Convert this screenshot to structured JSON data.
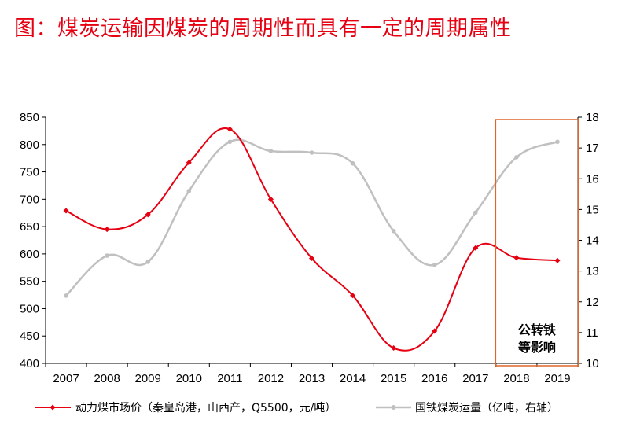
{
  "title": "图：煤炭运输因煤炭的周期性而具有一定的周期属性",
  "chart_data": {
    "type": "line",
    "x": [
      "2007",
      "2008",
      "2009",
      "2010",
      "2011",
      "2012",
      "2013",
      "2014",
      "2015",
      "2016",
      "2017",
      "2018",
      "2019"
    ],
    "y_left": {
      "range": [
        400,
        850
      ],
      "ticks": [
        400,
        450,
        500,
        550,
        600,
        650,
        700,
        750,
        800,
        850
      ]
    },
    "y_right": {
      "range": [
        10,
        18
      ],
      "ticks": [
        10,
        11,
        12,
        13,
        14,
        15,
        16,
        17,
        18
      ]
    },
    "series": [
      {
        "name": "动力煤市场价（秦皇岛港，山西产，Q5500，元/吨）",
        "axis": "left",
        "color": "#e60012",
        "values": [
          679,
          645,
          672,
          767,
          828,
          700,
          592,
          524,
          428,
          459,
          611,
          593,
          588
        ]
      },
      {
        "name": "国铁煤炭运量（亿吨，右轴）",
        "axis": "right",
        "color": "#c0c0c0",
        "values": [
          12.2,
          13.5,
          13.3,
          15.6,
          17.2,
          16.9,
          16.85,
          16.5,
          14.3,
          13.2,
          14.9,
          16.7,
          17.2
        ]
      }
    ],
    "annotation": {
      "lines": [
        "公转铁",
        "等影响"
      ],
      "box_color": "#e0662a",
      "covers": [
        "2018",
        "2019"
      ]
    },
    "grid": false,
    "legend_position": "bottom"
  }
}
